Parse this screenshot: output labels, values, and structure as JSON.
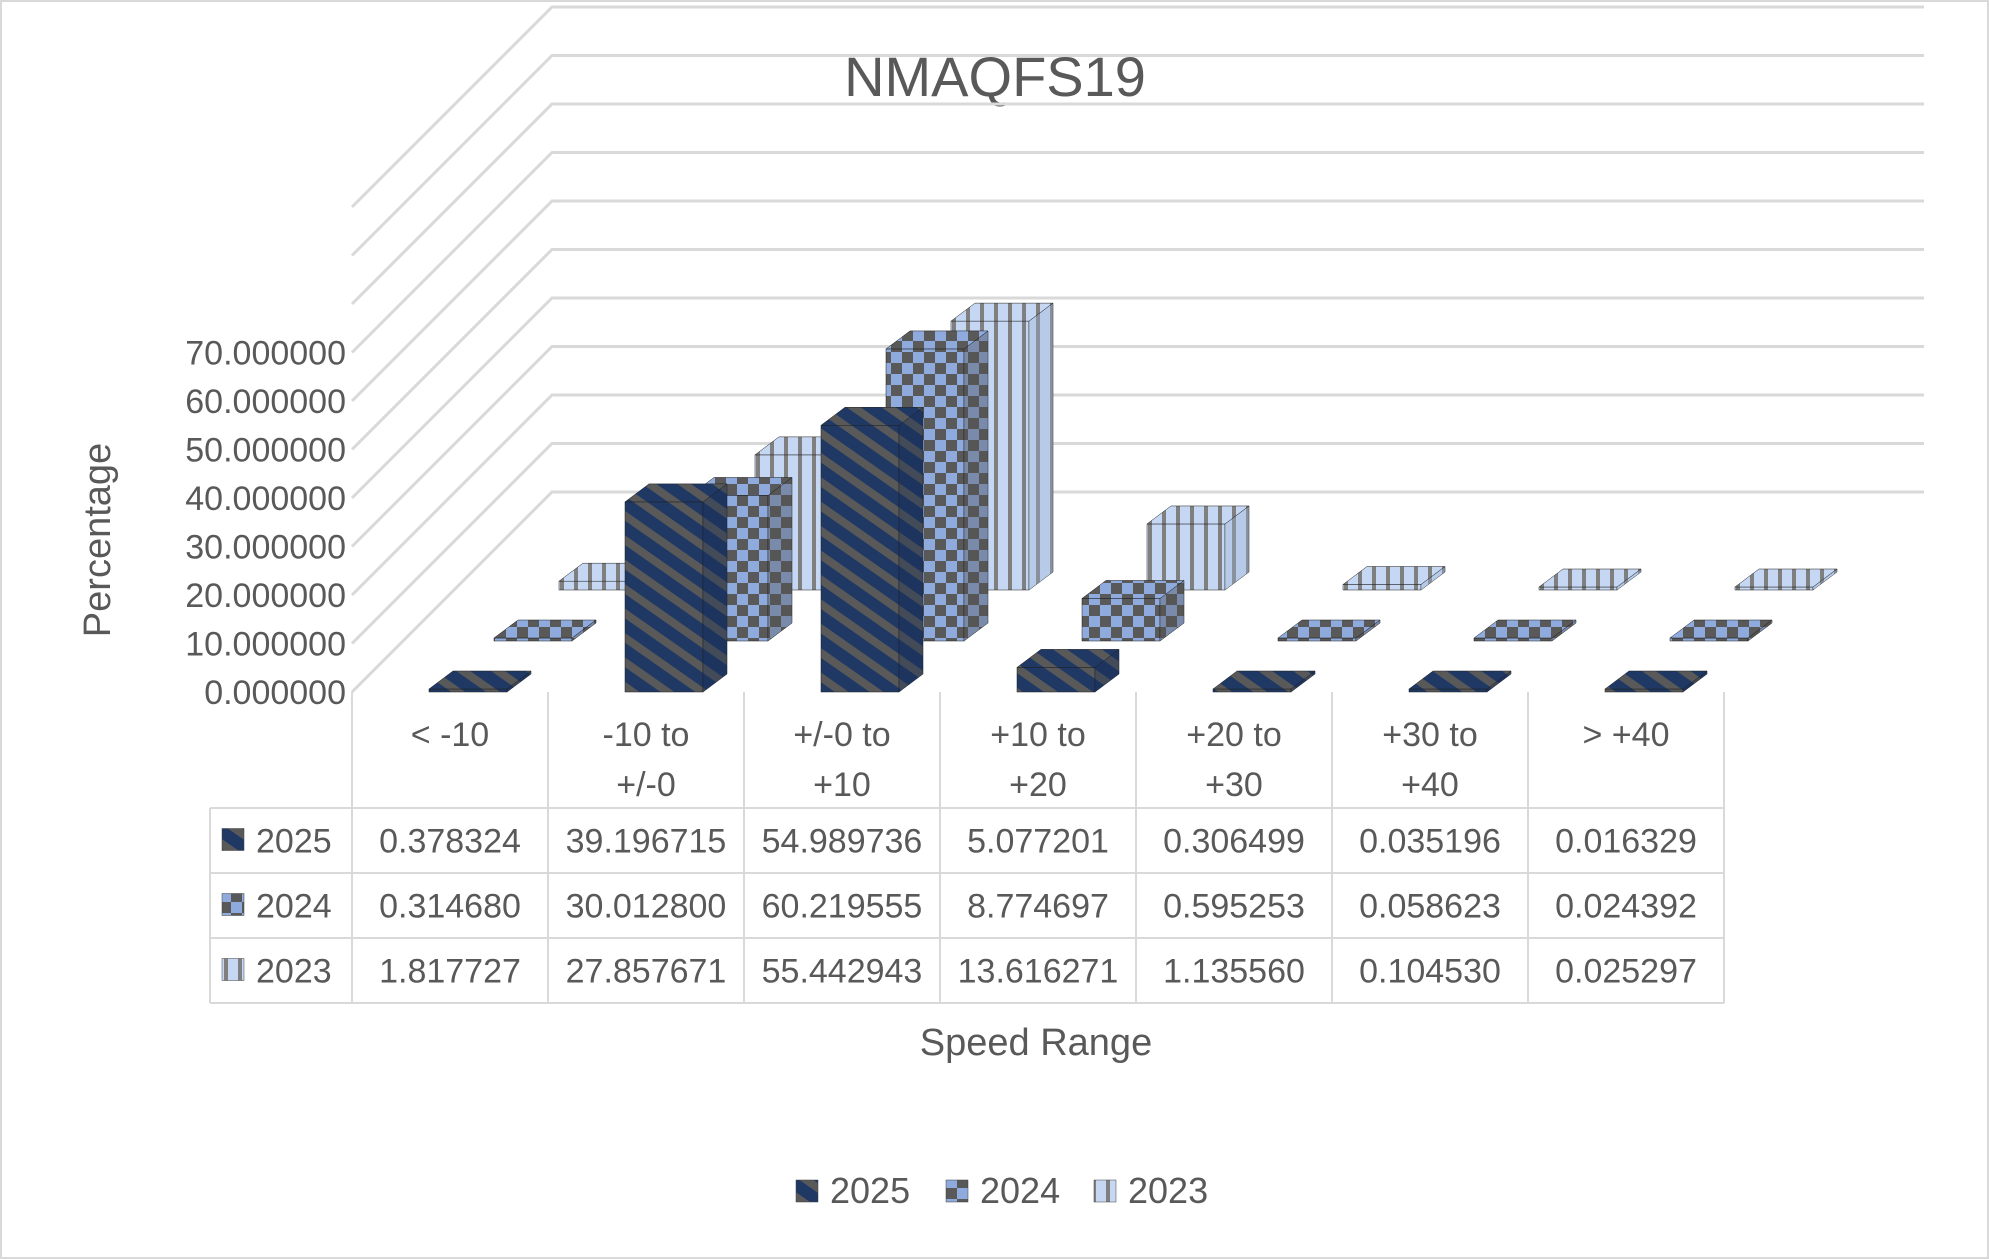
{
  "chart_data": {
    "type": "bar",
    "title": "NMAQFS19",
    "xlabel": "Speed Range",
    "ylabel": "Percentage",
    "ylim": [
      0,
      100
    ],
    "y_ticks": [
      "0.000000",
      "10.000000",
      "20.000000",
      "30.000000",
      "40.000000",
      "50.000000",
      "60.000000",
      "70.000000"
    ],
    "categories": [
      [
        "< -10"
      ],
      [
        "-10 to",
        "+/-0"
      ],
      [
        "+/-0 to",
        "+10"
      ],
      [
        "+10 to",
        "+20"
      ],
      [
        "+20 to",
        "+30"
      ],
      [
        "+30 to",
        "+40"
      ],
      [
        "> +40"
      ]
    ],
    "series": [
      {
        "name": "2025",
        "values": [
          0.378324,
          39.196715,
          54.989736,
          5.077201,
          0.306499,
          0.035196,
          0.016329
        ],
        "labels": [
          "0.378324",
          "39.196715",
          "54.989736",
          "5.077201",
          "0.306499",
          "0.035196",
          "0.016329"
        ]
      },
      {
        "name": "2024",
        "values": [
          0.31468,
          30.0128,
          60.219555,
          8.774697,
          0.595253,
          0.058623,
          0.024392
        ],
        "labels": [
          "0.314680",
          "30.012800",
          "60.219555",
          "8.774697",
          "0.595253",
          "0.058623",
          "0.024392"
        ]
      },
      {
        "name": "2023",
        "values": [
          1.817727,
          27.857671,
          55.442943,
          13.616271,
          1.13556,
          0.10453,
          0.025297
        ],
        "labels": [
          "1.817727",
          "27.857671",
          "55.442943",
          "13.616271",
          "1.135560",
          "0.104530",
          "0.025297"
        ]
      }
    ],
    "legend_position": "bottom",
    "data_table": true,
    "grid": true,
    "colors": {
      "navy": "#1f3864",
      "gray": "#595959",
      "light_blue": "#8faadc",
      "pale_blue": "#c5d7f2",
      "grid": "#d9d9d9",
      "text": "#595959"
    }
  }
}
